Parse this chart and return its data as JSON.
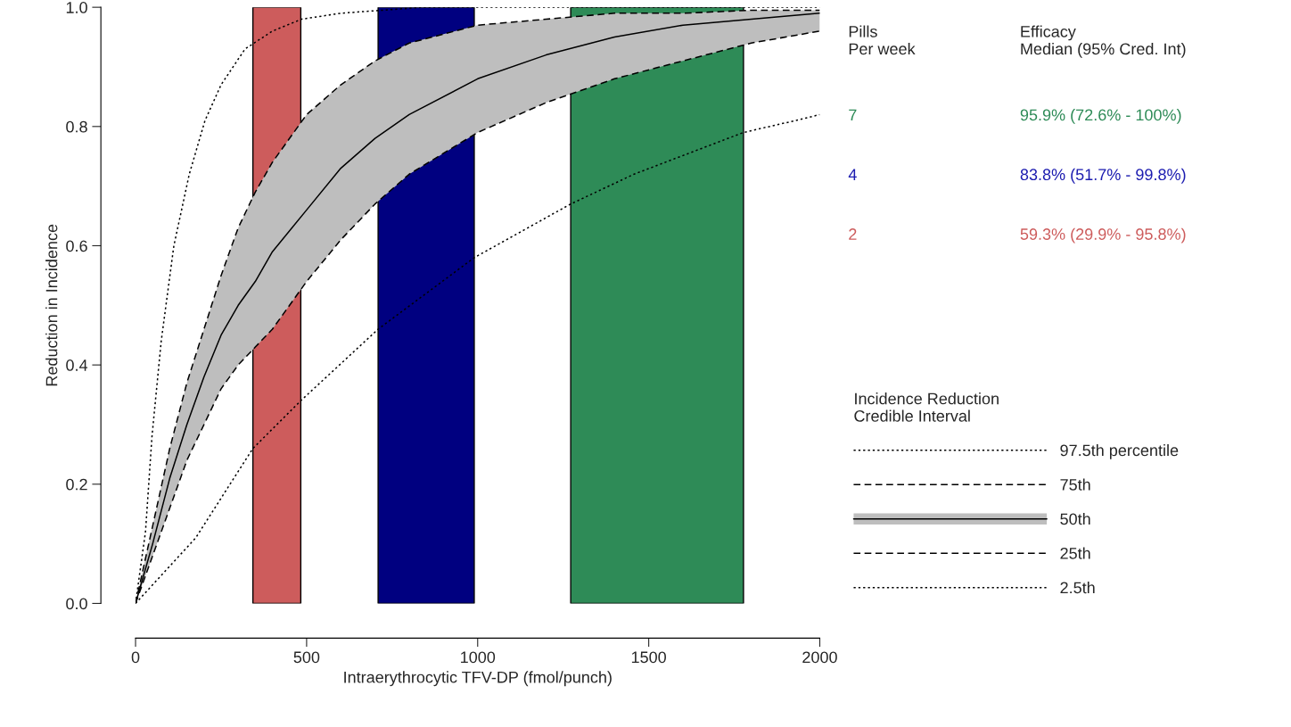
{
  "chart_data": {
    "type": "line",
    "xlabel": "Intraerythrocytic TFV-DP (fmol/punch)",
    "ylabel": "Reduction in Incidence",
    "legend_title": "Incidence Reduction\nCredible Interval",
    "legend": "right",
    "xlim": [
      0,
      2000
    ],
    "ylim": [
      0,
      1.0
    ],
    "xticks": [
      0,
      500,
      1000,
      1500,
      2000
    ],
    "yticks": [
      {
        "value": 0,
        "label": "0.0"
      },
      {
        "value": 0.2,
        "label": "0.2"
      },
      {
        "value": 0.4,
        "label": "0.4"
      },
      {
        "value": 0.6,
        "label": "0.6"
      },
      {
        "value": 0.8,
        "label": "0.8"
      },
      {
        "value": 1.0,
        "label": "1.0"
      }
    ],
    "bands": [
      {
        "axis": "x",
        "from": 343,
        "to": 483,
        "color": "#cd5c5c"
      },
      {
        "axis": "x",
        "from": 709,
        "to": 990,
        "color": "#000080"
      },
      {
        "axis": "x",
        "from": 1272,
        "to": 1777,
        "color": "#2e8b57"
      }
    ],
    "series": [
      {
        "name": "97.5th percentile",
        "line_style": "dotted",
        "color": "#000000",
        "x": [
          0,
          29,
          48,
          75,
          112,
          157,
          203,
          250,
          320,
          400,
          485,
          600,
          840,
          1200,
          1600,
          2000
        ],
        "values": [
          0,
          0.12,
          0.28,
          0.44,
          0.6,
          0.72,
          0.81,
          0.87,
          0.93,
          0.96,
          0.98,
          0.99,
          1.0,
          1.0,
          1.0,
          1.0
        ]
      },
      {
        "name": "75th",
        "line_style": "dashed",
        "color": "#000000",
        "x": [
          0,
          50,
          100,
          150,
          200,
          250,
          300,
          350,
          400,
          500,
          600,
          700,
          800,
          1000,
          1200,
          1400,
          1600,
          1800,
          2000
        ],
        "values": [
          0,
          0.13,
          0.26,
          0.37,
          0.46,
          0.55,
          0.63,
          0.69,
          0.74,
          0.82,
          0.87,
          0.91,
          0.94,
          0.97,
          0.98,
          0.99,
          0.99,
          0.995,
          0.995
        ]
      },
      {
        "name": "50th",
        "line_style": "solid",
        "color": "#000000",
        "x": [
          0,
          50,
          100,
          150,
          200,
          250,
          300,
          350,
          400,
          500,
          600,
          700,
          800,
          1000,
          1200,
          1400,
          1600,
          1800,
          2000
        ],
        "values": [
          0,
          0.1,
          0.21,
          0.3,
          0.38,
          0.45,
          0.5,
          0.54,
          0.59,
          0.66,
          0.73,
          0.78,
          0.82,
          0.88,
          0.92,
          0.95,
          0.97,
          0.98,
          0.99
        ],
        "lower": [
          0,
          0.08,
          0.16,
          0.24,
          0.3,
          0.36,
          0.4,
          0.43,
          0.46,
          0.54,
          0.61,
          0.67,
          0.72,
          0.79,
          0.84,
          0.88,
          0.91,
          0.94,
          0.96
        ],
        "upper": [
          0,
          0.13,
          0.26,
          0.37,
          0.46,
          0.55,
          0.63,
          0.69,
          0.74,
          0.82,
          0.87,
          0.91,
          0.94,
          0.97,
          0.98,
          0.99,
          0.99,
          0.995,
          0.995
        ]
      },
      {
        "name": "25th",
        "line_style": "dashed",
        "color": "#000000",
        "x": [
          0,
          50,
          100,
          150,
          200,
          250,
          300,
          350,
          400,
          500,
          600,
          700,
          800,
          1000,
          1200,
          1400,
          1600,
          1800,
          2000
        ],
        "values": [
          0,
          0.08,
          0.16,
          0.24,
          0.3,
          0.36,
          0.4,
          0.43,
          0.46,
          0.54,
          0.61,
          0.67,
          0.72,
          0.79,
          0.84,
          0.88,
          0.91,
          0.94,
          0.96
        ]
      },
      {
        "name": "2.5th",
        "line_style": "dotted",
        "color": "#000000",
        "x": [
          0,
          176,
          343,
          483,
          709,
          990,
          1272,
          1457,
          1777,
          1929,
          2000
        ],
        "values": [
          0,
          0.11,
          0.26,
          0.34,
          0.46,
          0.58,
          0.67,
          0.72,
          0.79,
          0.81,
          0.82
        ]
      }
    ],
    "annotations": [
      "Pills\nPer week",
      "Efficacy\nMedian (95% Cred. Int)",
      "7",
      "95.9% (72.6% - 100%)",
      "4",
      "83.8% (51.7% - 99.8%)",
      "2",
      "59.3% (29.9% - 95.8%)"
    ]
  }
}
